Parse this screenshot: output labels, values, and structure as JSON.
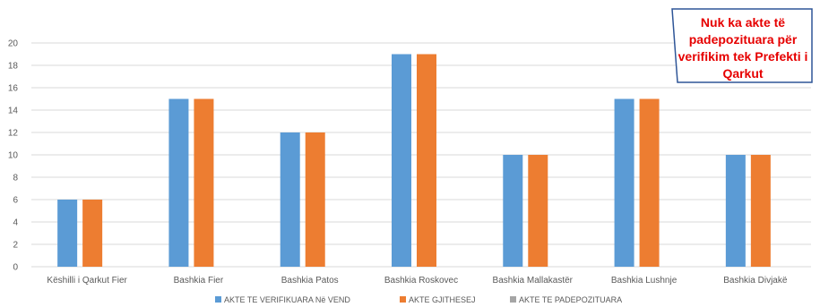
{
  "chart_data": {
    "type": "bar",
    "categories": [
      "Këshilli i Qarkut Fier",
      "Bashkia Fier",
      "Bashkia Patos",
      "Bashkia Roskovec",
      "Bashkia Mallakastër",
      "Bashkia Lushnje",
      "Bashkia Divjakë"
    ],
    "series": [
      {
        "name": "AKTE TE VERIFIKUARA Në VEND",
        "color": "#5b9bd5",
        "values": [
          6,
          15,
          12,
          19,
          10,
          15,
          10
        ]
      },
      {
        "name": "AKTE GJITHESEJ",
        "color": "#ed7d31",
        "values": [
          6,
          15,
          12,
          19,
          10,
          15,
          10
        ]
      },
      {
        "name": "AKTE TE PADEPOZITUARA",
        "color": "#a5a5a5",
        "values": [
          0,
          0,
          0,
          0,
          0,
          0,
          0
        ]
      }
    ],
    "yticks": [
      0,
      2,
      4,
      6,
      8,
      10,
      12,
      14,
      16,
      18,
      20
    ],
    "ylim": [
      0,
      20
    ],
    "grid": true,
    "legend_position": "bottom",
    "annotation": "Nuk ka akte të padepozituara për verifikim tek Prefekti i Qarkut"
  }
}
